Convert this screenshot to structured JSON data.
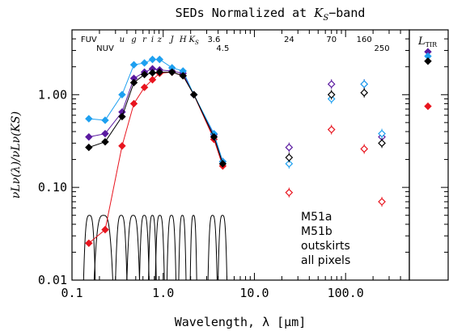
{
  "chart_data": {
    "type": "scatter",
    "title_main": "SEDs Normalized at ",
    "title_var": "K",
    "title_sub": "S",
    "title_tail": "−band",
    "xlabel": "Wavelength, λ [μm]",
    "ylabel": "νLν(λ)/νLν(KS)",
    "xscale": "log",
    "yscale": "log",
    "xlim": [
      0.1,
      500
    ],
    "ylim": [
      0.01,
      5
    ],
    "xticks": [
      {
        "v": 0.1,
        "label": "0.1"
      },
      {
        "v": 1.0,
        "label": "1.0"
      },
      {
        "v": 10.0,
        "label": "10.0"
      },
      {
        "v": 100.0,
        "label": "100.0"
      }
    ],
    "yticks": [
      {
        "v": 0.01,
        "label": "0.01"
      },
      {
        "v": 0.1,
        "label": "0.10"
      },
      {
        "v": 1.0,
        "label": "1.00"
      }
    ],
    "bands": [
      {
        "label": "FUV",
        "x": 0.153,
        "row": 1
      },
      {
        "label": "NUV",
        "x": 0.231,
        "row": 2
      },
      {
        "label": "u",
        "x": 0.354,
        "row": 1,
        "italic": true
      },
      {
        "label": "g",
        "x": 0.477,
        "row": 1,
        "italic": true
      },
      {
        "label": "r",
        "x": 0.623,
        "row": 1,
        "italic": true
      },
      {
        "label": "i",
        "x": 0.763,
        "row": 1,
        "italic": true
      },
      {
        "label": "z",
        "x": 0.913,
        "row": 1,
        "italic": true
      },
      {
        "label": "J",
        "x": 1.25,
        "row": 1,
        "italic": true
      },
      {
        "label": "H",
        "x": 1.65,
        "row": 1,
        "italic": true
      },
      {
        "label": "K",
        "x": 2.17,
        "row": 1,
        "italic": true,
        "sub": "S"
      },
      {
        "label": "3.6",
        "x": 3.6,
        "row": 1
      },
      {
        "label": "4.5",
        "x": 4.5,
        "row": 2
      },
      {
        "label": "24",
        "x": 24,
        "row": 1
      },
      {
        "label": "70",
        "x": 70,
        "row": 1
      },
      {
        "label": "160",
        "x": 160,
        "row": 1
      },
      {
        "label": "250",
        "x": 250,
        "row": 2
      }
    ],
    "series": [
      {
        "name": "M51a",
        "color": "#5a1aa0",
        "x": [
          0.153,
          0.231,
          0.354,
          0.477,
          0.623,
          0.763,
          0.913,
          1.25,
          1.65,
          2.17,
          3.6,
          4.5
        ],
        "y": [
          0.35,
          0.38,
          0.65,
          1.5,
          1.75,
          1.9,
          1.85,
          1.8,
          1.7,
          1.0,
          0.37,
          0.19
        ],
        "fir_x": [
          24,
          70,
          160,
          250
        ],
        "fir_y": [
          0.27,
          1.3,
          1.3,
          0.35
        ],
        "ltir": 2.9
      },
      {
        "name": "M51b",
        "color": "#e8141e",
        "x": [
          0.153,
          0.231,
          0.354,
          0.477,
          0.623,
          0.763,
          0.913,
          1.25,
          1.65,
          2.17,
          3.6,
          4.5
        ],
        "y": [
          0.025,
          0.035,
          0.28,
          0.8,
          1.2,
          1.45,
          1.7,
          1.75,
          1.6,
          1.0,
          0.33,
          0.17
        ],
        "fir_x": [
          24,
          70,
          160,
          250
        ],
        "fir_y": [
          0.088,
          0.42,
          0.26,
          0.07
        ],
        "ltir": 0.75
      },
      {
        "name": "outskirts",
        "color": "#1ea0f0",
        "x": [
          0.153,
          0.231,
          0.354,
          0.477,
          0.623,
          0.763,
          0.913,
          1.25,
          1.65,
          2.17,
          3.6,
          4.5
        ],
        "y": [
          0.55,
          0.53,
          1.0,
          2.1,
          2.2,
          2.4,
          2.4,
          1.95,
          1.8,
          1.0,
          0.38,
          0.19
        ],
        "fir_x": [
          24,
          70,
          160,
          250
        ],
        "fir_y": [
          0.18,
          0.9,
          1.3,
          0.38
        ],
        "ltir": 2.6
      },
      {
        "name": "all pixels",
        "color": "#000000",
        "x": [
          0.153,
          0.231,
          0.354,
          0.477,
          0.623,
          0.763,
          0.913,
          1.25,
          1.65,
          2.17,
          3.6,
          4.5
        ],
        "y": [
          0.27,
          0.31,
          0.58,
          1.35,
          1.65,
          1.72,
          1.75,
          1.75,
          1.6,
          1.0,
          0.35,
          0.18
        ],
        "fir_x": [
          24,
          70,
          160,
          250
        ],
        "fir_y": [
          0.21,
          1.0,
          1.05,
          0.3
        ],
        "ltir": 2.3
      }
    ],
    "ltir_label": "L",
    "ltir_sub": "TIR",
    "legend_position": "bottom-right",
    "filters_note": "filter transmission curves"
  }
}
